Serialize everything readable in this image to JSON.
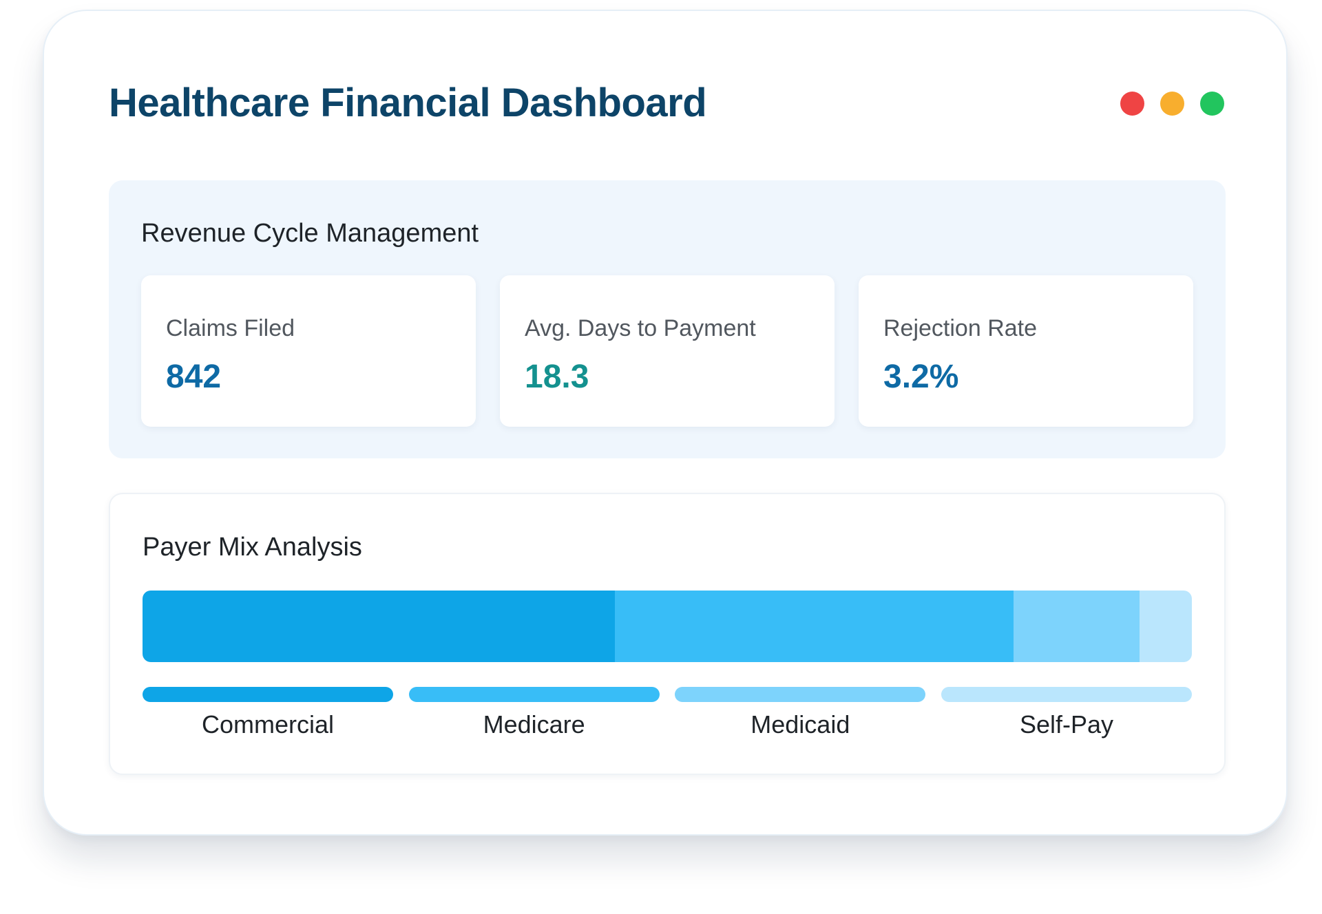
{
  "header": {
    "title": "Healthcare Financial Dashboard",
    "window_controls": [
      {
        "name": "close",
        "color": "#ef4444"
      },
      {
        "name": "minimize",
        "color": "#f8ae2e"
      },
      {
        "name": "maximize",
        "color": "#22c55e"
      }
    ]
  },
  "revenue_cycle": {
    "title": "Revenue Cycle Management",
    "kpis": [
      {
        "label": "Claims Filed",
        "value": "842",
        "color": "#0e6aa5"
      },
      {
        "label": "Avg. Days to Payment",
        "value": "18.3",
        "color": "#14918f"
      },
      {
        "label": "Rejection Rate",
        "value": "3.2%",
        "color": "#0e6aa5"
      }
    ]
  },
  "payer_mix": {
    "title": "Payer Mix Analysis",
    "segments": [
      {
        "label": "Commercial",
        "share": 45,
        "color": "#0ea5e7"
      },
      {
        "label": "Medicare",
        "share": 38,
        "color": "#38bdf7"
      },
      {
        "label": "Medicaid",
        "share": 12,
        "color": "#7dd3fc"
      },
      {
        "label": "Self-Pay",
        "share": 5,
        "color": "#bae6fd"
      }
    ]
  }
}
